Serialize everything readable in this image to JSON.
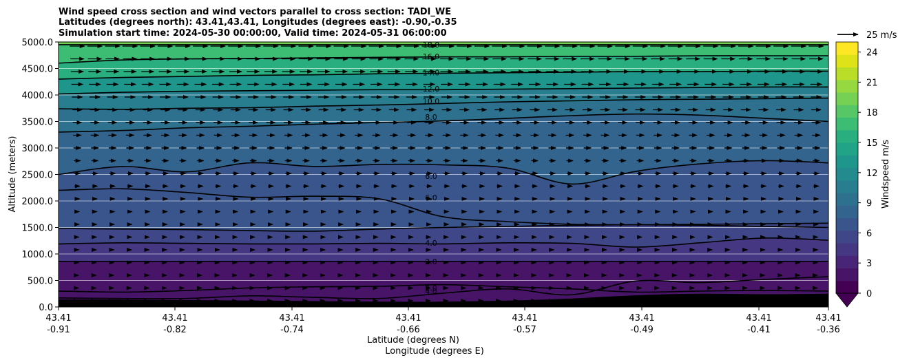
{
  "chart_data": {
    "type": "contour",
    "title_lines": [
      "Wind speed cross section and wind vectors parallel to cross section: TADI_WE",
      "Latitudes (degrees north): 43.41,43.41, Longitudes (degrees east): -0.90,-0.35",
      "Simulation start time: 2024-05-30 00:00:00, Valid time: 2024-05-31 06:00:00"
    ],
    "ylabel": "Altitude (meters)",
    "xlabel_lat": "Latitude (degrees N)",
    "xlabel_lon": "Longitude (degrees E)",
    "ylim": [
      0,
      5000
    ],
    "y_ticks": [
      0,
      500,
      1000,
      1500,
      2000,
      2500,
      3000,
      3500,
      4000,
      4500,
      5000
    ],
    "y_tick_labels": [
      "0.0",
      "500.0",
      "1000.0",
      "1500.0",
      "2000.0",
      "2500.0",
      "3000.0",
      "3500.0",
      "4000.0",
      "4500.0",
      "5000.0"
    ],
    "x_ticks": [
      {
        "lat": "43.41",
        "lon": "-0.91"
      },
      {
        "lat": "43.41",
        "lon": "-0.82"
      },
      {
        "lat": "43.41",
        "lon": "-0.74"
      },
      {
        "lat": "43.41",
        "lon": "-0.66"
      },
      {
        "lat": "43.41",
        "lon": "-0.57"
      },
      {
        "lat": "43.41",
        "lon": "-0.49"
      },
      {
        "lat": "43.41",
        "lon": "-0.41"
      },
      {
        "lat": "43.41",
        "lon": "-0.36"
      }
    ],
    "colorbar": {
      "label": "Windspeed m/s",
      "range": [
        0,
        25
      ],
      "ticks": [
        0,
        3,
        6,
        9,
        12,
        15,
        18,
        21,
        24
      ],
      "colors": [
        "#440154",
        "#481467",
        "#482576",
        "#453781",
        "#3f4788",
        "#39558c",
        "#32648e",
        "#2d718e",
        "#287d8e",
        "#238a8d",
        "#1f968b",
        "#20a386",
        "#29af7f",
        "#3dbc74",
        "#56c667",
        "#75d054",
        "#95d840",
        "#bade28",
        "#dde318",
        "#fde725"
      ]
    },
    "vector_key": "25 m/s",
    "grid": true,
    "contour_lines": [
      {
        "label": "18.0",
        "y": [
          4950,
          4950,
          4950,
          4950,
          4950,
          4950,
          4950,
          4950,
          4950,
          4950,
          4950,
          4950,
          4950
        ]
      },
      {
        "label": "16.0",
        "y": [
          4600,
          4660,
          4680,
          4690,
          4700,
          4710,
          4720,
          4720,
          4730,
          4730,
          4740,
          4740,
          4740
        ]
      },
      {
        "label": "14.0",
        "y": [
          4300,
          4330,
          4350,
          4370,
          4380,
          4400,
          4410,
          4420,
          4430,
          4440,
          4440,
          4450,
          4450
        ]
      },
      {
        "label": "12.0",
        "y": [
          4020,
          4050,
          4070,
          4080,
          4090,
          4100,
          4100,
          4110,
          4120,
          4130,
          4140,
          4150,
          4150
        ]
      },
      {
        "label": "10.0",
        "y": [
          3740,
          3730,
          3750,
          3760,
          3790,
          3810,
          3840,
          3870,
          3890,
          3910,
          3920,
          3930,
          3940
        ]
      },
      {
        "label": "8.0",
        "y": [
          3300,
          3330,
          3380,
          3410,
          3450,
          3480,
          3510,
          3560,
          3610,
          3640,
          3620,
          3560,
          3500
        ]
      },
      {
        "label": "6.0",
        "y": [
          2500,
          2650,
          2550,
          2720,
          2650,
          2690,
          2680,
          2620,
          2320,
          2560,
          2700,
          2760,
          2720
        ]
      },
      {
        "label": "6.0",
        "y": [
          2200,
          2230,
          2160,
          2070,
          2090,
          2040,
          1700,
          1610,
          1560,
          1550,
          1540,
          1520,
          1500
        ]
      },
      {
        "label": "",
        "y": [
          1480,
          1470,
          1460,
          1440,
          1430,
          1470,
          1500,
          1520,
          1540,
          1550,
          1560,
          1570,
          1580
        ]
      },
      {
        "label": "4.0",
        "y": [
          1190,
          1210,
          1200,
          1190,
          1190,
          1200,
          1190,
          1210,
          1200,
          1130,
          1210,
          1300,
          1260
        ]
      },
      {
        "label": "2.0",
        "y": [
          860,
          860,
          860,
          860,
          860,
          860,
          860,
          860,
          860,
          860,
          860,
          860,
          860
        ]
      },
      {
        "label": "2.0",
        "y": [
          300,
          280,
          310,
          360,
          380,
          390,
          420,
          380,
          340,
          280,
          300,
          310,
          300
        ]
      },
      {
        "label": "4.0",
        "y": [
          170,
          160,
          160,
          210,
          180,
          160,
          260,
          340,
          230,
          490,
          460,
          520,
          570
        ]
      }
    ],
    "contour_label_values": [
      "18.0",
      "16.0",
      "14.0",
      "12.0",
      "10.0",
      "8.0",
      "6.0",
      "6.0",
      "4.0",
      "2.0",
      "2.0",
      "4.0",
      "2.0",
      "4.0",
      "2.0"
    ],
    "terrain_top_y": [
      140,
      140,
      130,
      120,
      110,
      100,
      100,
      120,
      160,
      220,
      250,
      240,
      250
    ]
  }
}
